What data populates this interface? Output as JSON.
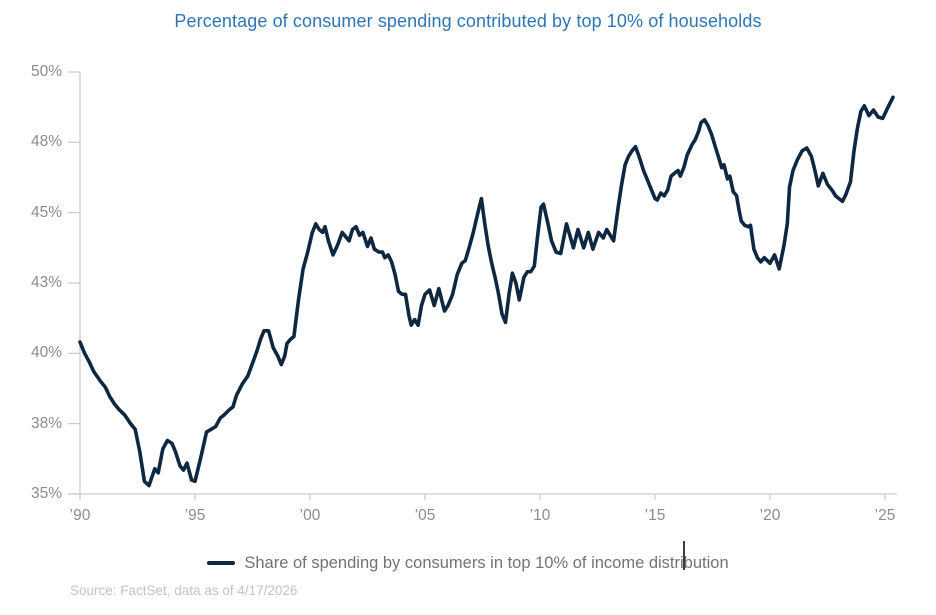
{
  "title": "Percentage of consumer spending contributed by top 10% of households",
  "legend": {
    "label": "Share of spending by consumers in top 10% of income distribution"
  },
  "source": "Source: FactSet, data as of 4/17/2026",
  "colors": {
    "line": "#0e2841",
    "title": "#2e75b6",
    "axis": "#c9c9c9",
    "tick_label": "#8c8c8c",
    "legend_text": "#737373",
    "source_text": "#c3c3c3"
  },
  "chart_data": {
    "type": "line",
    "title": "Percentage of consumer spending contributed by top 10% of households",
    "xlabel": "",
    "ylabel": "",
    "grid": false,
    "legend_position": "bottom",
    "xlim": [
      1990,
      2025.6
    ],
    "ylim": [
      35,
      50
    ],
    "y_ticks": [
      {
        "value": 50,
        "label": "50%"
      },
      {
        "value": 47.5,
        "label": "48%"
      },
      {
        "value": 45,
        "label": "45%"
      },
      {
        "value": 42.5,
        "label": "43%"
      },
      {
        "value": 40,
        "label": "40%"
      },
      {
        "value": 37.5,
        "label": "38%"
      },
      {
        "value": 35,
        "label": "35%"
      }
    ],
    "x_ticks": [
      {
        "value": 1990,
        "label": "’90"
      },
      {
        "value": 1995,
        "label": "’95"
      },
      {
        "value": 2000,
        "label": "’00"
      },
      {
        "value": 2005,
        "label": "’05"
      },
      {
        "value": 2010,
        "label": "’10"
      },
      {
        "value": 2015,
        "label": "’15"
      },
      {
        "value": 2020,
        "label": "’20"
      },
      {
        "value": 2025,
        "label": "’25"
      }
    ],
    "series": [
      {
        "name": "Share of spending by consumers in top 10% of income distribution",
        "points": [
          [
            1990.0,
            40.4
          ],
          [
            1990.2,
            40.0
          ],
          [
            1990.4,
            39.7
          ],
          [
            1990.6,
            39.35
          ],
          [
            1990.9,
            39.0
          ],
          [
            1991.1,
            38.8
          ],
          [
            1991.3,
            38.45
          ],
          [
            1991.5,
            38.2
          ],
          [
            1991.7,
            38.0
          ],
          [
            1991.95,
            37.8
          ],
          [
            1992.2,
            37.5
          ],
          [
            1992.4,
            37.3
          ],
          [
            1992.6,
            36.5
          ],
          [
            1992.8,
            35.45
          ],
          [
            1993.0,
            35.3
          ],
          [
            1993.25,
            35.9
          ],
          [
            1993.4,
            35.75
          ],
          [
            1993.6,
            36.6
          ],
          [
            1993.8,
            36.9
          ],
          [
            1994.0,
            36.8
          ],
          [
            1994.15,
            36.5
          ],
          [
            1994.35,
            36.0
          ],
          [
            1994.5,
            35.85
          ],
          [
            1994.65,
            36.1
          ],
          [
            1994.85,
            35.5
          ],
          [
            1995.0,
            35.45
          ],
          [
            1995.25,
            36.3
          ],
          [
            1995.5,
            37.2
          ],
          [
            1995.7,
            37.3
          ],
          [
            1995.9,
            37.4
          ],
          [
            1996.1,
            37.7
          ],
          [
            1996.25,
            37.8
          ],
          [
            1996.5,
            38.0
          ],
          [
            1996.65,
            38.1
          ],
          [
            1996.8,
            38.5
          ],
          [
            1997.05,
            38.9
          ],
          [
            1997.3,
            39.2
          ],
          [
            1997.5,
            39.65
          ],
          [
            1997.7,
            40.1
          ],
          [
            1997.85,
            40.5
          ],
          [
            1998.0,
            40.8
          ],
          [
            1998.2,
            40.8
          ],
          [
            1998.4,
            40.2
          ],
          [
            1998.6,
            39.9
          ],
          [
            1998.75,
            39.6
          ],
          [
            1998.9,
            39.9
          ],
          [
            1999.0,
            40.35
          ],
          [
            1999.15,
            40.5
          ],
          [
            1999.3,
            40.6
          ],
          [
            1999.5,
            41.9
          ],
          [
            1999.7,
            43.0
          ],
          [
            1999.9,
            43.6
          ],
          [
            2000.1,
            44.3
          ],
          [
            2000.25,
            44.6
          ],
          [
            2000.4,
            44.4
          ],
          [
            2000.55,
            44.3
          ],
          [
            2000.65,
            44.5
          ],
          [
            2000.8,
            44.0
          ],
          [
            2001.0,
            43.5
          ],
          [
            2001.2,
            43.85
          ],
          [
            2001.4,
            44.3
          ],
          [
            2001.55,
            44.15
          ],
          [
            2001.7,
            44.0
          ],
          [
            2001.85,
            44.4
          ],
          [
            2002.0,
            44.5
          ],
          [
            2002.15,
            44.2
          ],
          [
            2002.3,
            44.3
          ],
          [
            2002.5,
            43.8
          ],
          [
            2002.65,
            44.1
          ],
          [
            2002.8,
            43.7
          ],
          [
            2003.0,
            43.6
          ],
          [
            2003.15,
            43.6
          ],
          [
            2003.25,
            43.4
          ],
          [
            2003.4,
            43.5
          ],
          [
            2003.55,
            43.25
          ],
          [
            2003.7,
            42.8
          ],
          [
            2003.85,
            42.2
          ],
          [
            2004.0,
            42.1
          ],
          [
            2004.15,
            42.1
          ],
          [
            2004.3,
            41.35
          ],
          [
            2004.4,
            41.0
          ],
          [
            2004.55,
            41.2
          ],
          [
            2004.7,
            41.0
          ],
          [
            2004.85,
            41.7
          ],
          [
            2005.0,
            42.1
          ],
          [
            2005.2,
            42.25
          ],
          [
            2005.4,
            41.7
          ],
          [
            2005.6,
            42.3
          ],
          [
            2005.85,
            41.5
          ],
          [
            2006.0,
            41.7
          ],
          [
            2006.2,
            42.1
          ],
          [
            2006.4,
            42.8
          ],
          [
            2006.6,
            43.2
          ],
          [
            2006.75,
            43.3
          ],
          [
            2006.9,
            43.7
          ],
          [
            2007.1,
            44.3
          ],
          [
            2007.3,
            45.0
          ],
          [
            2007.45,
            45.5
          ],
          [
            2007.6,
            44.6
          ],
          [
            2007.75,
            43.8
          ],
          [
            2007.9,
            43.2
          ],
          [
            2008.05,
            42.7
          ],
          [
            2008.2,
            42.1
          ],
          [
            2008.35,
            41.4
          ],
          [
            2008.5,
            41.1
          ],
          [
            2008.65,
            42.1
          ],
          [
            2008.8,
            42.85
          ],
          [
            2008.95,
            42.5
          ],
          [
            2009.1,
            41.9
          ],
          [
            2009.3,
            42.7
          ],
          [
            2009.45,
            42.9
          ],
          [
            2009.6,
            42.9
          ],
          [
            2009.75,
            43.1
          ],
          [
            2009.9,
            44.2
          ],
          [
            2010.05,
            45.2
          ],
          [
            2010.15,
            45.3
          ],
          [
            2010.35,
            44.6
          ],
          [
            2010.5,
            44.0
          ],
          [
            2010.7,
            43.6
          ],
          [
            2010.9,
            43.55
          ],
          [
            2011.15,
            44.6
          ],
          [
            2011.45,
            43.75
          ],
          [
            2011.65,
            44.4
          ],
          [
            2011.9,
            43.75
          ],
          [
            2012.1,
            44.3
          ],
          [
            2012.3,
            43.7
          ],
          [
            2012.55,
            44.3
          ],
          [
            2012.75,
            44.1
          ],
          [
            2012.9,
            44.4
          ],
          [
            2013.2,
            44.0
          ],
          [
            2013.4,
            45.2
          ],
          [
            2013.55,
            46.0
          ],
          [
            2013.7,
            46.7
          ],
          [
            2013.85,
            47.0
          ],
          [
            2014.0,
            47.2
          ],
          [
            2014.15,
            47.35
          ],
          [
            2014.35,
            46.9
          ],
          [
            2014.5,
            46.5
          ],
          [
            2014.65,
            46.2
          ],
          [
            2014.8,
            45.9
          ],
          [
            2015.0,
            45.5
          ],
          [
            2015.1,
            45.45
          ],
          [
            2015.25,
            45.7
          ],
          [
            2015.4,
            45.6
          ],
          [
            2015.55,
            45.8
          ],
          [
            2015.7,
            46.3
          ],
          [
            2015.85,
            46.4
          ],
          [
            2016.0,
            46.5
          ],
          [
            2016.1,
            46.3
          ],
          [
            2016.25,
            46.6
          ],
          [
            2016.4,
            47.05
          ],
          [
            2016.6,
            47.4
          ],
          [
            2016.75,
            47.6
          ],
          [
            2016.9,
            47.9
          ],
          [
            2017.0,
            48.2
          ],
          [
            2017.15,
            48.3
          ],
          [
            2017.3,
            48.1
          ],
          [
            2017.45,
            47.8
          ],
          [
            2017.6,
            47.4
          ],
          [
            2017.75,
            47.0
          ],
          [
            2017.9,
            46.6
          ],
          [
            2018.0,
            46.7
          ],
          [
            2018.15,
            46.2
          ],
          [
            2018.25,
            46.3
          ],
          [
            2018.4,
            45.75
          ],
          [
            2018.55,
            45.6
          ],
          [
            2018.65,
            45.1
          ],
          [
            2018.75,
            44.7
          ],
          [
            2018.9,
            44.55
          ],
          [
            2019.05,
            44.5
          ],
          [
            2019.15,
            44.55
          ],
          [
            2019.3,
            43.7
          ],
          [
            2019.45,
            43.4
          ],
          [
            2019.6,
            43.25
          ],
          [
            2019.75,
            43.4
          ],
          [
            2020.0,
            43.2
          ],
          [
            2020.2,
            43.5
          ],
          [
            2020.4,
            43.0
          ],
          [
            2020.6,
            43.8
          ],
          [
            2020.75,
            44.6
          ],
          [
            2020.85,
            45.9
          ],
          [
            2021.0,
            46.5
          ],
          [
            2021.2,
            46.9
          ],
          [
            2021.4,
            47.2
          ],
          [
            2021.6,
            47.3
          ],
          [
            2021.8,
            47.0
          ],
          [
            2021.95,
            46.5
          ],
          [
            2022.1,
            45.95
          ],
          [
            2022.3,
            46.4
          ],
          [
            2022.5,
            46.0
          ],
          [
            2022.7,
            45.8
          ],
          [
            2022.85,
            45.6
          ],
          [
            2023.0,
            45.5
          ],
          [
            2023.15,
            45.4
          ],
          [
            2023.3,
            45.65
          ],
          [
            2023.5,
            46.1
          ],
          [
            2023.65,
            47.2
          ],
          [
            2023.8,
            48.0
          ],
          [
            2023.95,
            48.6
          ],
          [
            2024.1,
            48.8
          ],
          [
            2024.3,
            48.45
          ],
          [
            2024.5,
            48.65
          ],
          [
            2024.7,
            48.4
          ],
          [
            2024.9,
            48.35
          ],
          [
            2025.1,
            48.7
          ],
          [
            2025.35,
            49.1
          ]
        ]
      }
    ]
  }
}
